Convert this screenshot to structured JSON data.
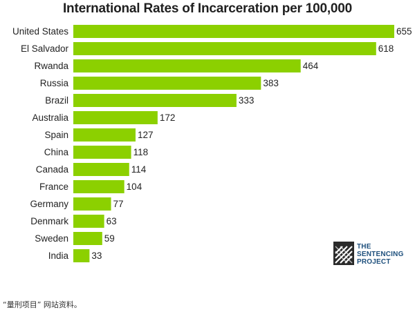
{
  "chart_data": {
    "type": "bar",
    "orientation": "horizontal",
    "title": "International Rates of Incarceration per 100,000",
    "categories": [
      "United States",
      "El Salvador",
      "Rwanda",
      "Russia",
      "Brazil",
      "Australia",
      "Spain",
      "China",
      "Canada",
      "France",
      "Germany",
      "Denmark",
      "Sweden",
      "India"
    ],
    "values": [
      655,
      618,
      464,
      383,
      333,
      172,
      127,
      118,
      114,
      104,
      77,
      63,
      59,
      33
    ],
    "value_labels": [
      "655",
      "618",
      "464",
      "383",
      "333",
      "172",
      "127",
      "118",
      "114",
      "104",
      "77",
      "63",
      "59",
      "33"
    ],
    "xlim": [
      0,
      655
    ],
    "grid": false,
    "bar_color": "#8cd000"
  },
  "logo": {
    "line1": "THE",
    "line2": "SENTENCING",
    "line3": "PROJECT",
    "color": "#1d4f7c"
  },
  "footnote": "“量刑项目” 网站资料。"
}
